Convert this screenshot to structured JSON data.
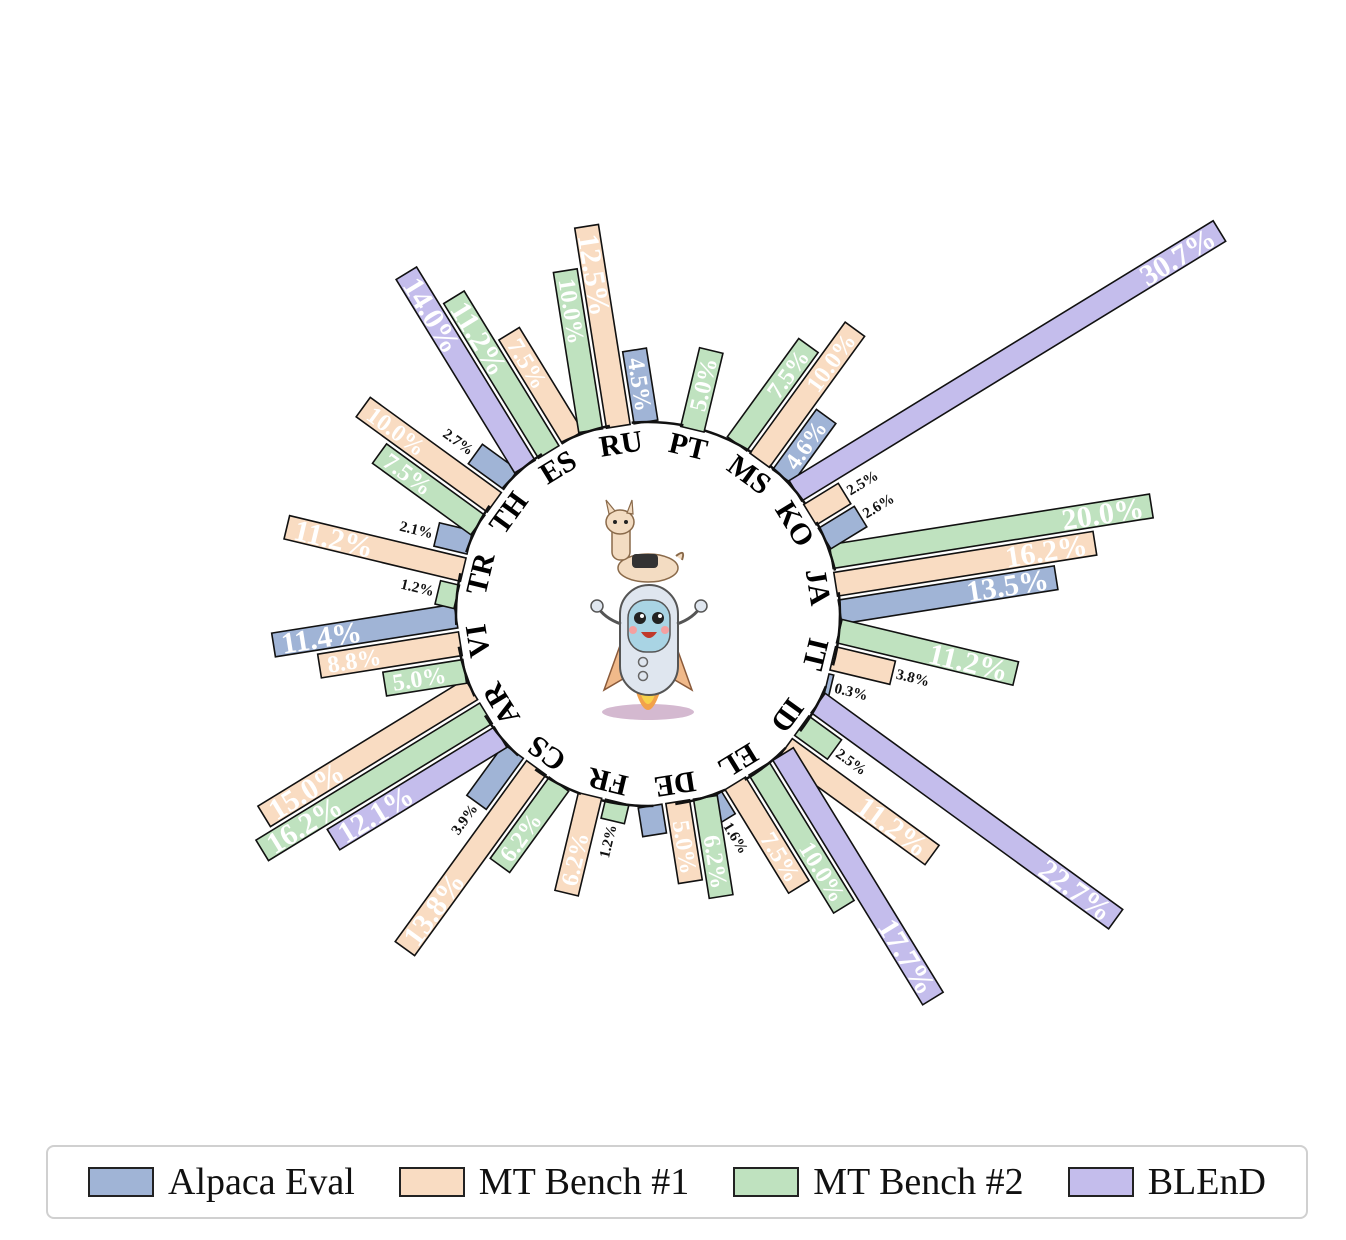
{
  "chart_data": {
    "type": "bar",
    "categories": [
      "JA",
      "IT",
      "ID",
      "EL",
      "DE",
      "FR",
      "CS",
      "AR",
      "VI",
      "TR",
      "TH",
      "ES",
      "RU",
      "PT",
      "MS",
      "KO"
    ],
    "series": [
      {
        "name": "Alpaca Eval",
        "color": "#a0b4d6",
        "values": [
          13.5,
          0.3,
          null,
          1.6,
          1.8,
          null,
          3.9,
          null,
          11.4,
          2.1,
          2.7,
          null,
          4.5,
          null,
          4.6,
          2.6
        ]
      },
      {
        "name": "MT Bench #1",
        "color": "#f9dcc2",
        "values": [
          16.2,
          3.8,
          11.2,
          7.5,
          5.0,
          6.2,
          13.8,
          15.0,
          8.8,
          11.2,
          10.0,
          7.5,
          12.5,
          null,
          10.0,
          2.5
        ]
      },
      {
        "name": "MT Bench #2",
        "color": "#bfe2bf",
        "values": [
          20.0,
          11.2,
          2.5,
          10.0,
          6.2,
          1.2,
          6.2,
          16.2,
          5.0,
          1.2,
          7.5,
          11.2,
          10.0,
          5.0,
          7.5,
          null
        ]
      },
      {
        "name": "BLEnD",
        "color": "#c4bdec",
        "values": [
          null,
          null,
          22.7,
          17.7,
          null,
          null,
          null,
          12.1,
          null,
          null,
          null,
          14.0,
          null,
          null,
          null,
          30.7
        ]
      }
    ],
    "value_labels": {
      "Alpaca Eval": [
        "13.5%",
        "0.3%",
        "",
        "1.6%",
        "",
        "",
        "3.9%",
        "",
        "11.4%",
        "2.1%",
        "2.7%",
        "",
        "4.5%",
        "",
        "4.6%",
        "2.6%"
      ],
      "MT Bench #1": [
        "16.2%",
        "3.8%",
        "11.2%",
        "7.5%",
        "5.0%",
        "6.2%",
        "13.8%",
        "15.0%",
        "8.8%",
        "11.2%",
        "10.0%",
        "7.5%",
        "12.5%",
        "",
        "10.0%",
        "2.5%"
      ],
      "MT Bench #2": [
        "20.0%",
        "11.2%",
        "2.5%",
        "10.0%",
        "6.2%",
        "1.2%",
        "6.2%",
        "16.2%",
        "5.0%",
        "1.2%",
        "7.5%",
        "11.2%",
        "10.0%",
        "5.0%",
        "7.5%",
        ""
      ],
      "BLEnD": [
        "",
        "",
        "22.7%",
        "17.7%",
        "",
        "",
        "",
        "12.1%",
        "",
        "",
        "",
        "14.0%",
        "",
        "",
        "",
        "30.7%"
      ]
    },
    "legend_position": "bottom",
    "grid": false
  },
  "center_image": "alpaca-riding-rocket-mascot",
  "legend": {
    "items": [
      {
        "label": "Alpaca Eval",
        "color": "#a0b4d6"
      },
      {
        "label": "MT Bench #1",
        "color": "#f9dcc2"
      },
      {
        "label": "MT Bench #2",
        "color": "#bfe2bf"
      },
      {
        "label": "BLEnD",
        "color": "#c4bdec"
      }
    ]
  }
}
